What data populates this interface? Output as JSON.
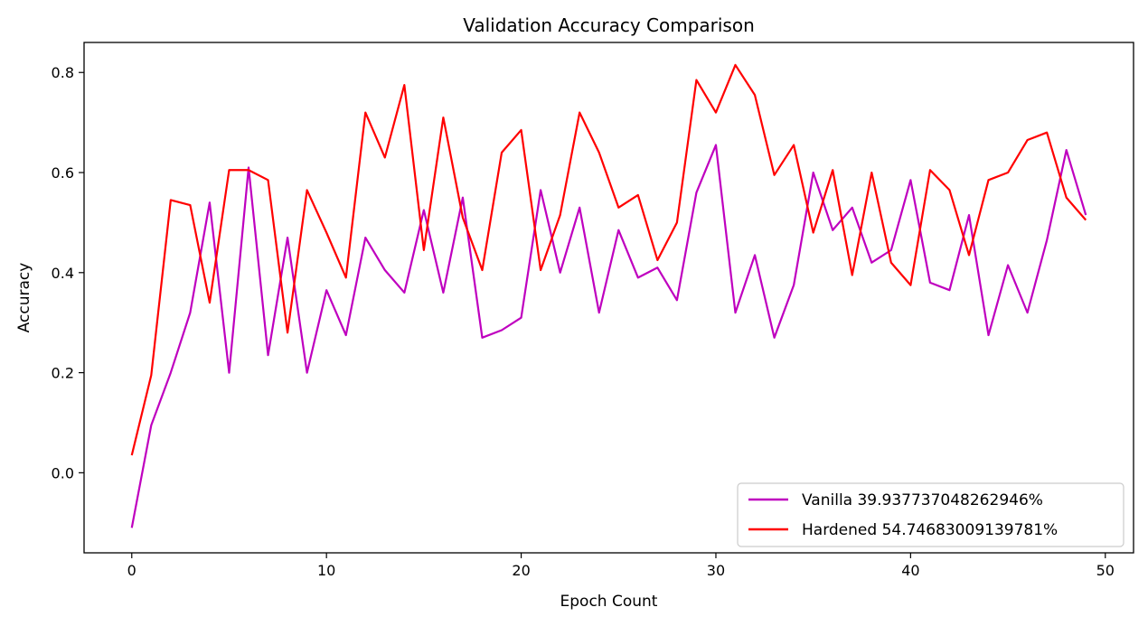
{
  "chart_data": {
    "type": "line",
    "title": "Validation Accuracy Comparison",
    "xlabel": "Epoch Count",
    "ylabel": "Accuracy",
    "xlim": [
      -2.45,
      51.45
    ],
    "ylim": [
      -0.16,
      0.86
    ],
    "xticks": [
      0,
      10,
      20,
      30,
      40,
      50
    ],
    "yticks": [
      0.0,
      0.2,
      0.4,
      0.6,
      0.8
    ],
    "xtick_labels": [
      "0",
      "10",
      "20",
      "30",
      "40",
      "50"
    ],
    "ytick_labels": [
      "0.0",
      "0.2",
      "0.4",
      "0.6",
      "0.8"
    ],
    "grid": false,
    "legend_position": "lower-right",
    "x": [
      0,
      1,
      2,
      3,
      4,
      5,
      6,
      7,
      8,
      9,
      10,
      11,
      12,
      13,
      14,
      15,
      16,
      17,
      18,
      19,
      20,
      21,
      22,
      23,
      24,
      25,
      26,
      27,
      28,
      29,
      30,
      31,
      32,
      33,
      34,
      35,
      36,
      37,
      38,
      39,
      40,
      41,
      42,
      43,
      44,
      45,
      46,
      47,
      48,
      49
    ],
    "series": [
      {
        "name": "Vanilla 39.937737048262946%",
        "color": "#bf00bf",
        "values": [
          -0.11,
          0.095,
          0.2,
          0.32,
          0.54,
          0.2,
          0.61,
          0.235,
          0.47,
          0.2,
          0.365,
          0.275,
          0.47,
          0.405,
          0.36,
          0.525,
          0.36,
          0.55,
          0.27,
          0.285,
          0.31,
          0.565,
          0.4,
          0.53,
          0.32,
          0.485,
          0.39,
          0.41,
          0.345,
          0.56,
          0.655,
          0.32,
          0.435,
          0.27,
          0.375,
          0.6,
          0.485,
          0.53,
          0.42,
          0.445,
          0.585,
          0.38,
          0.365,
          0.515,
          0.275,
          0.415,
          0.32,
          0.465,
          0.645,
          0.515
        ]
      },
      {
        "name": "Hardened 54.74683009139781%",
        "color": "#ff0000",
        "values": [
          0.035,
          0.195,
          0.545,
          0.535,
          0.34,
          0.605,
          0.605,
          0.585,
          0.28,
          0.565,
          0.48,
          0.39,
          0.72,
          0.63,
          0.775,
          0.445,
          0.71,
          0.51,
          0.405,
          0.64,
          0.685,
          0.405,
          0.515,
          0.72,
          0.64,
          0.53,
          0.555,
          0.425,
          0.5,
          0.785,
          0.72,
          0.815,
          0.755,
          0.595,
          0.655,
          0.48,
          0.605,
          0.395,
          0.6,
          0.42,
          0.375,
          0.605,
          0.565,
          0.435,
          0.585,
          0.6,
          0.665,
          0.68,
          0.55,
          0.505
        ]
      }
    ]
  }
}
